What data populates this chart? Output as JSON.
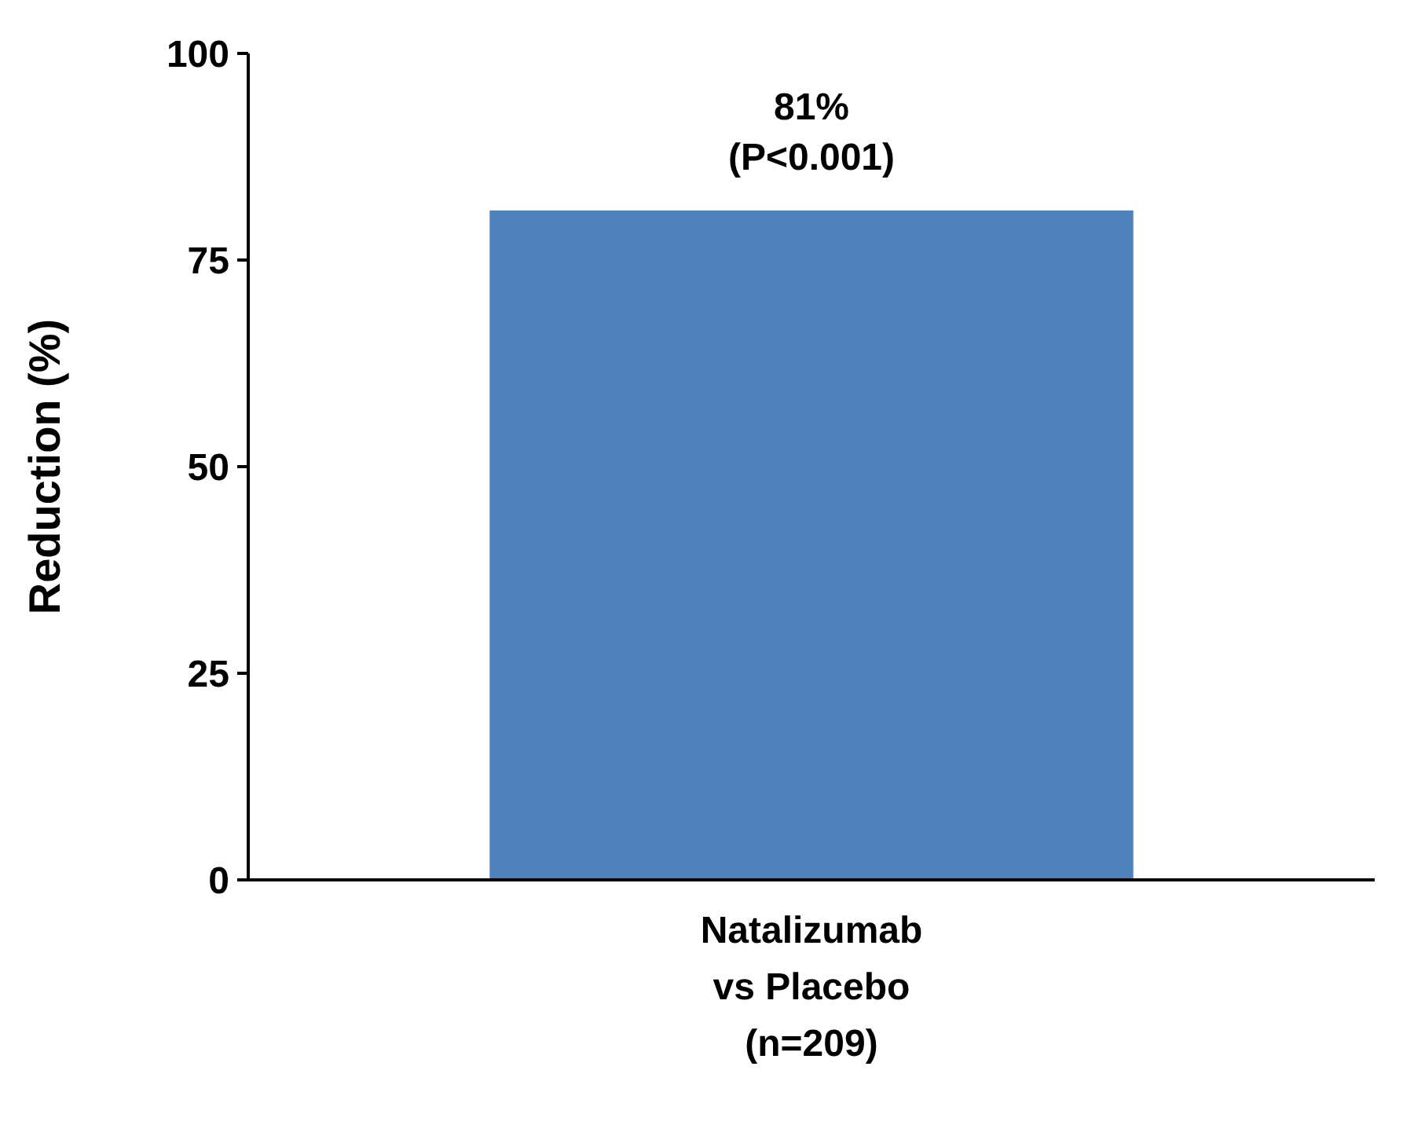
{
  "chart_data": {
    "type": "bar",
    "ylabel": "Reduction (%)",
    "categories": [
      "Natalizumab vs Placebo (n=209)"
    ],
    "values": [
      81
    ],
    "color": "#4f81bd",
    "value_labels": [
      "81%"
    ],
    "annotations": [
      {
        "text": "(P<0.001)",
        "x": "Natalizumab vs Placebo (n=209)",
        "y": 81
      }
    ],
    "ylim": [
      0,
      100
    ],
    "yticks": [
      0,
      25,
      50,
      75,
      100
    ],
    "grid": false
  }
}
